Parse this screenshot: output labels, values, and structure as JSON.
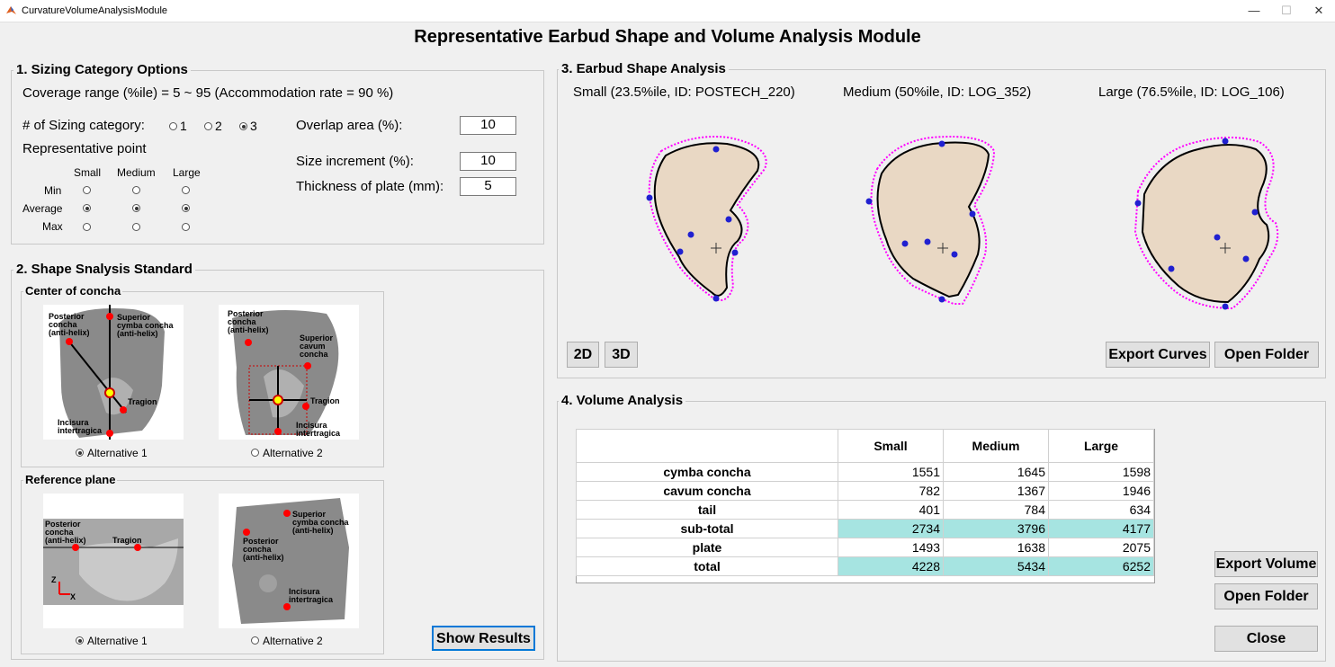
{
  "window": {
    "title": "CurvatureVolumeAnalysisModule",
    "minimize": "—",
    "maximize": "☐",
    "close": "✕"
  },
  "main_title": "Representative Earbud Shape and Volume Analysis Module",
  "sizing": {
    "title": "1. Sizing Category Options",
    "coverage": "Coverage range (%ile) = 5 ~ 95 (Accommodation rate = 90 %)",
    "num_label": "# of Sizing category:",
    "options": [
      "1",
      "2",
      "3"
    ],
    "selected": "3",
    "rep_point": "Representative point",
    "cols": [
      "Small",
      "Medium",
      "Large"
    ],
    "rows": [
      "Min",
      "Average",
      "Max"
    ],
    "selected_row": "Average",
    "overlap_label": "Overlap area (%):",
    "overlap_value": "10",
    "increment_label": "Size increment (%):",
    "increment_value": "10",
    "thickness_label": "Thickness of plate (mm):",
    "thickness_value": "5"
  },
  "standard": {
    "title": "2. Shape Snalysis Standard",
    "center_title": "Center of concha",
    "center_alt1": "Alternative 1",
    "center_alt2": "Alternative 2",
    "center_selected": "Alternative 1",
    "ref_title": "Reference plane",
    "ref_alt1": "Alternative 1",
    "ref_alt2": "Alternative 2",
    "ref_selected": "Alternative 1",
    "img1_labels": {
      "a": "Posterior\nconcha\n(anti-helix)",
      "b": "Superior\ncymba concha\n(anti-helix)",
      "c": "Tragion",
      "d": "Incisura\nintertragica"
    },
    "img2_labels": {
      "a": "Posterior\nconcha\n(anti-helix)",
      "b": "Superior\ncavum\nconcha",
      "c": "Tragion",
      "d": "Incisura\nintertragica"
    },
    "img3_labels": {
      "a": "Posterior\nconcha\n(anti-helix)",
      "b": "Tragion",
      "z": "Z",
      "x": "X"
    },
    "img4_labels": {
      "a": "Superior\ncymba concha\n(anti-helix)",
      "b": "Posterior\nconcha\n(anti-helix)",
      "c": "Incisura\nintertragica"
    },
    "show_results": "Show Results"
  },
  "shape": {
    "title": "3. Earbud Shape Analysis",
    "small": "Small (23.5%ile, ID: POSTECH_220)",
    "medium": "Medium (50%ile, ID: LOG_352)",
    "large": "Large (76.5%ile, ID: LOG_106)",
    "btn_2d": "2D",
    "btn_3d": "3D",
    "export_curves": "Export Curves",
    "open_folder": "Open Folder"
  },
  "volume": {
    "title": "4. Volume Analysis",
    "columns": [
      "Small",
      "Medium",
      "Large"
    ],
    "rows": [
      {
        "label": "cymba concha",
        "values": [
          "1551",
          "1645",
          "1598"
        ],
        "highlight": false
      },
      {
        "label": "cavum concha",
        "values": [
          "782",
          "1367",
          "1946"
        ],
        "highlight": false
      },
      {
        "label": "tail",
        "values": [
          "401",
          "784",
          "634"
        ],
        "highlight": false
      },
      {
        "label": "sub-total",
        "values": [
          "2734",
          "3796",
          "4177"
        ],
        "highlight": true
      },
      {
        "label": "plate",
        "values": [
          "1493",
          "1638",
          "2075"
        ],
        "highlight": false
      },
      {
        "label": "total",
        "values": [
          "4228",
          "5434",
          "6252"
        ],
        "highlight": true
      }
    ],
    "export_volume": "Export Volume",
    "open_folder": "Open Folder",
    "close": "Close"
  },
  "colors": {
    "highlight": "#a6e4e1",
    "landmark": "#ff0000",
    "outline": "#ff00ff",
    "point": "#2020d0",
    "skin": "#e9d8c4"
  }
}
